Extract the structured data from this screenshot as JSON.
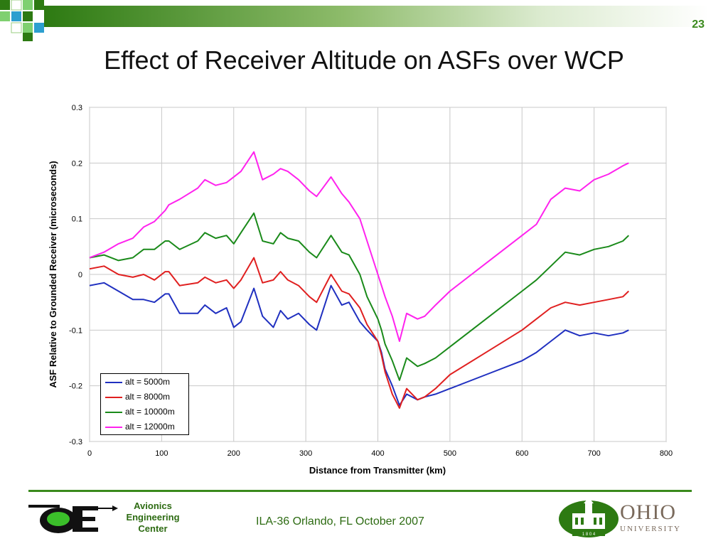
{
  "slide": {
    "number": "23",
    "title": "Effect of Receiver Altitude on ASFs over WCP"
  },
  "footer": {
    "org_line1": "Avionics",
    "org_line2": "Engineering",
    "org_line3": "Center",
    "center_text": "ILA-36  Orlando, FL  October 2007",
    "university_name": "OHIO",
    "university_sub": "UNIVERSITY",
    "seal_year": "1 8 0 4"
  },
  "colors": {
    "accent_green": "#3a8a1c"
  },
  "chart_data": {
    "type": "line",
    "title": "",
    "xlabel": "Distance from Transmitter (km)",
    "ylabel": "ASF Relative to Grounded Receiver (microseconds)",
    "xlim": [
      0,
      800
    ],
    "ylim": [
      -0.3,
      0.3
    ],
    "xticks": [
      "0",
      "100",
      "200",
      "300",
      "400",
      "500",
      "600",
      "700",
      "800"
    ],
    "yticks": [
      "-0.3",
      "-0.2",
      "-0.1",
      "0",
      "0.1",
      "0.2",
      "0.3"
    ],
    "grid": true,
    "legend_position": "bottom-left",
    "x": [
      0,
      20,
      40,
      60,
      75,
      90,
      105,
      110,
      125,
      150,
      160,
      175,
      190,
      200,
      210,
      228,
      240,
      255,
      265,
      275,
      290,
      305,
      315,
      335,
      350,
      360,
      375,
      385,
      400,
      405,
      410,
      420,
      430,
      440,
      455,
      465,
      480,
      500,
      550,
      600,
      620,
      640,
      660,
      680,
      700,
      720,
      740,
      748
    ],
    "series": [
      {
        "name": "alt = 5000m",
        "color": "#2030c0",
        "values": [
          -0.02,
          -0.015,
          -0.03,
          -0.045,
          -0.045,
          -0.05,
          -0.035,
          -0.035,
          -0.07,
          -0.07,
          -0.055,
          -0.07,
          -0.06,
          -0.095,
          -0.085,
          -0.025,
          -0.075,
          -0.095,
          -0.065,
          -0.08,
          -0.07,
          -0.09,
          -0.1,
          -0.02,
          -0.055,
          -0.05,
          -0.085,
          -0.1,
          -0.12,
          -0.14,
          -0.17,
          -0.2,
          -0.235,
          -0.215,
          -0.225,
          -0.22,
          -0.215,
          -0.205,
          -0.18,
          -0.155,
          -0.14,
          -0.12,
          -0.1,
          -0.11,
          -0.105,
          -0.11,
          -0.105,
          -0.1
        ]
      },
      {
        "name": "alt = 8000m",
        "color": "#e02020",
        "values": [
          0.01,
          0.015,
          0.0,
          -0.005,
          0.0,
          -0.01,
          0.005,
          0.005,
          -0.02,
          -0.015,
          -0.005,
          -0.015,
          -0.01,
          -0.025,
          -0.01,
          0.03,
          -0.015,
          -0.01,
          0.005,
          -0.01,
          -0.02,
          -0.04,
          -0.05,
          0.0,
          -0.03,
          -0.035,
          -0.06,
          -0.09,
          -0.12,
          -0.145,
          -0.175,
          -0.215,
          -0.24,
          -0.205,
          -0.225,
          -0.22,
          -0.205,
          -0.18,
          -0.14,
          -0.1,
          -0.08,
          -0.06,
          -0.05,
          -0.055,
          -0.05,
          -0.045,
          -0.04,
          -0.03
        ]
      },
      {
        "name": "alt = 10000m",
        "color": "#1a8a1a",
        "values": [
          0.03,
          0.035,
          0.025,
          0.03,
          0.045,
          0.045,
          0.06,
          0.06,
          0.045,
          0.06,
          0.075,
          0.065,
          0.07,
          0.055,
          0.075,
          0.11,
          0.06,
          0.055,
          0.075,
          0.065,
          0.06,
          0.04,
          0.03,
          0.07,
          0.04,
          0.035,
          0.0,
          -0.04,
          -0.08,
          -0.1,
          -0.125,
          -0.155,
          -0.19,
          -0.15,
          -0.165,
          -0.16,
          -0.15,
          -0.13,
          -0.08,
          -0.03,
          -0.01,
          0.015,
          0.04,
          0.035,
          0.045,
          0.05,
          0.06,
          0.07
        ]
      },
      {
        "name": "alt = 12000m",
        "color": "#ff22ee",
        "values": [
          0.03,
          0.04,
          0.055,
          0.065,
          0.085,
          0.095,
          0.115,
          0.125,
          0.135,
          0.155,
          0.17,
          0.16,
          0.165,
          0.175,
          0.185,
          0.22,
          0.17,
          0.18,
          0.19,
          0.185,
          0.17,
          0.15,
          0.14,
          0.175,
          0.145,
          0.13,
          0.1,
          0.06,
          0.0,
          -0.02,
          -0.04,
          -0.075,
          -0.12,
          -0.07,
          -0.08,
          -0.075,
          -0.055,
          -0.03,
          0.02,
          0.07,
          0.09,
          0.135,
          0.155,
          0.15,
          0.17,
          0.18,
          0.195,
          0.2
        ]
      }
    ]
  }
}
